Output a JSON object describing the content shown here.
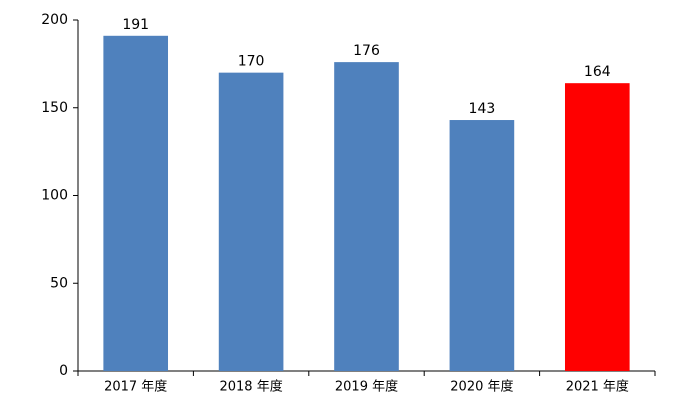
{
  "chart_data": {
    "type": "bar",
    "categories": [
      "2017 年度",
      "2018 年度",
      "2019 年度",
      "2020 年度",
      "2021 年度"
    ],
    "values": [
      191,
      170,
      176,
      143,
      164
    ],
    "colors": [
      "#4f81bd",
      "#4f81bd",
      "#4f81bd",
      "#4f81bd",
      "#ff0000"
    ],
    "ylim": [
      0,
      200
    ],
    "yticks": [
      0,
      50,
      100,
      150,
      200
    ],
    "grid": false
  }
}
